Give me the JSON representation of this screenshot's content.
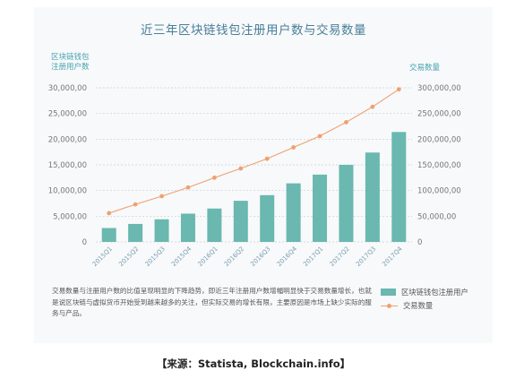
{
  "chart_data": {
    "type": "bar+line",
    "title": "近三年区块链钱包注册用户数与交易数量",
    "ylabel_left": "区块链钱包\n注册用户数",
    "ylabel_right": "交易数量",
    "categories": [
      "2015Q1",
      "2015Q2",
      "2015Q3",
      "2015Q4",
      "2016Q1",
      "2016Q2",
      "2016Q3",
      "2016Q4",
      "2017Q1",
      "2017Q2",
      "2017Q3",
      "2017Q4"
    ],
    "series": [
      {
        "name": "区块链钱包注册用户",
        "axis": "left",
        "type": "bar",
        "color": "#6ab8b0",
        "values": [
          2700,
          3500,
          4400,
          5500,
          6500,
          8000,
          9100,
          11400,
          13100,
          15000,
          17400,
          21400
        ]
      },
      {
        "name": "交易数量",
        "axis": "right",
        "type": "line",
        "color": "#f0a070",
        "values": [
          56000,
          73000,
          89000,
          106000,
          125000,
          143000,
          162000,
          184000,
          206000,
          233000,
          263000,
          297000
        ]
      }
    ],
    "y_left": {
      "min": 0,
      "max": 30000,
      "ticks": [
        "0",
        "5,000,00",
        "10,000,00",
        "15,000,00",
        "20,000,00",
        "25,000,00",
        "30,000,00"
      ]
    },
    "y_right": {
      "min": 0,
      "max": 300000,
      "ticks": [
        "0",
        "50,000,00",
        "100,000,00",
        "150,000,00",
        "200,000,00",
        "250,000,00",
        "300,000,00"
      ]
    },
    "grid": "horizontal-dashed"
  },
  "note": "交易数量与注册用户数的比值呈现明显的下降趋势，即近三年注册用户数增幅明显快于交易数量增长，也就是说区块链与虚拟货币开始受到越来越多的关注，但实际交易的增长有限，主要原因是市场上缺少实际的服务与产品。",
  "legend": {
    "bar": "区块链钱包注册用户",
    "line": "交易数量"
  },
  "source": "【来源：Statista, Blockchain.info】"
}
